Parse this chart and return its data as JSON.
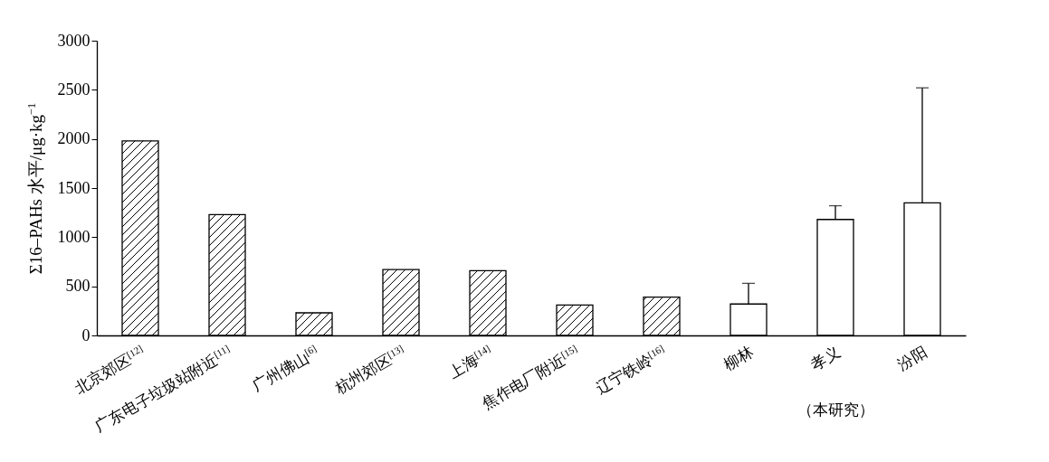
{
  "chart_data": {
    "type": "bar",
    "ylabel": "Σ16–PAHs 水平/μg·kg$^{−1}$",
    "categories": [
      "北京郊区$^{[12]}$",
      "广东电子垃圾站附近$^{[11]}$",
      "广州佛山$^{[6]}$",
      "杭州郊区$^{[13]}$",
      "上海$^{[14]}$",
      "焦作电厂附近$^{[15]}$",
      "辽宁铁岭$^{[16]}$",
      "柳林",
      "孝义",
      "汾阳"
    ],
    "series": [
      {
        "color": "#000000",
        "values": [
          1980,
          1230,
          230,
          670,
          660,
          310,
          390,
          null,
          null,
          null
        ]
      },
      {
        "color": "#ffffff",
        "values": [
          null,
          null,
          null,
          null,
          null,
          null,
          null,
          320,
          1180,
          1350
        ],
        "errors": [
          null,
          null,
          null,
          null,
          null,
          null,
          null,
          [
            320,
            530
          ],
          [
            1180,
            1320
          ],
          [
            1350,
            2520
          ]
        ]
      }
    ],
    "ylim": [
      0,
      3000
    ],
    "yticks": [
      0,
      500,
      1000,
      1500,
      2000,
      2500,
      3000
    ],
    "annotations": [
      "（本研究）"
    ]
  }
}
